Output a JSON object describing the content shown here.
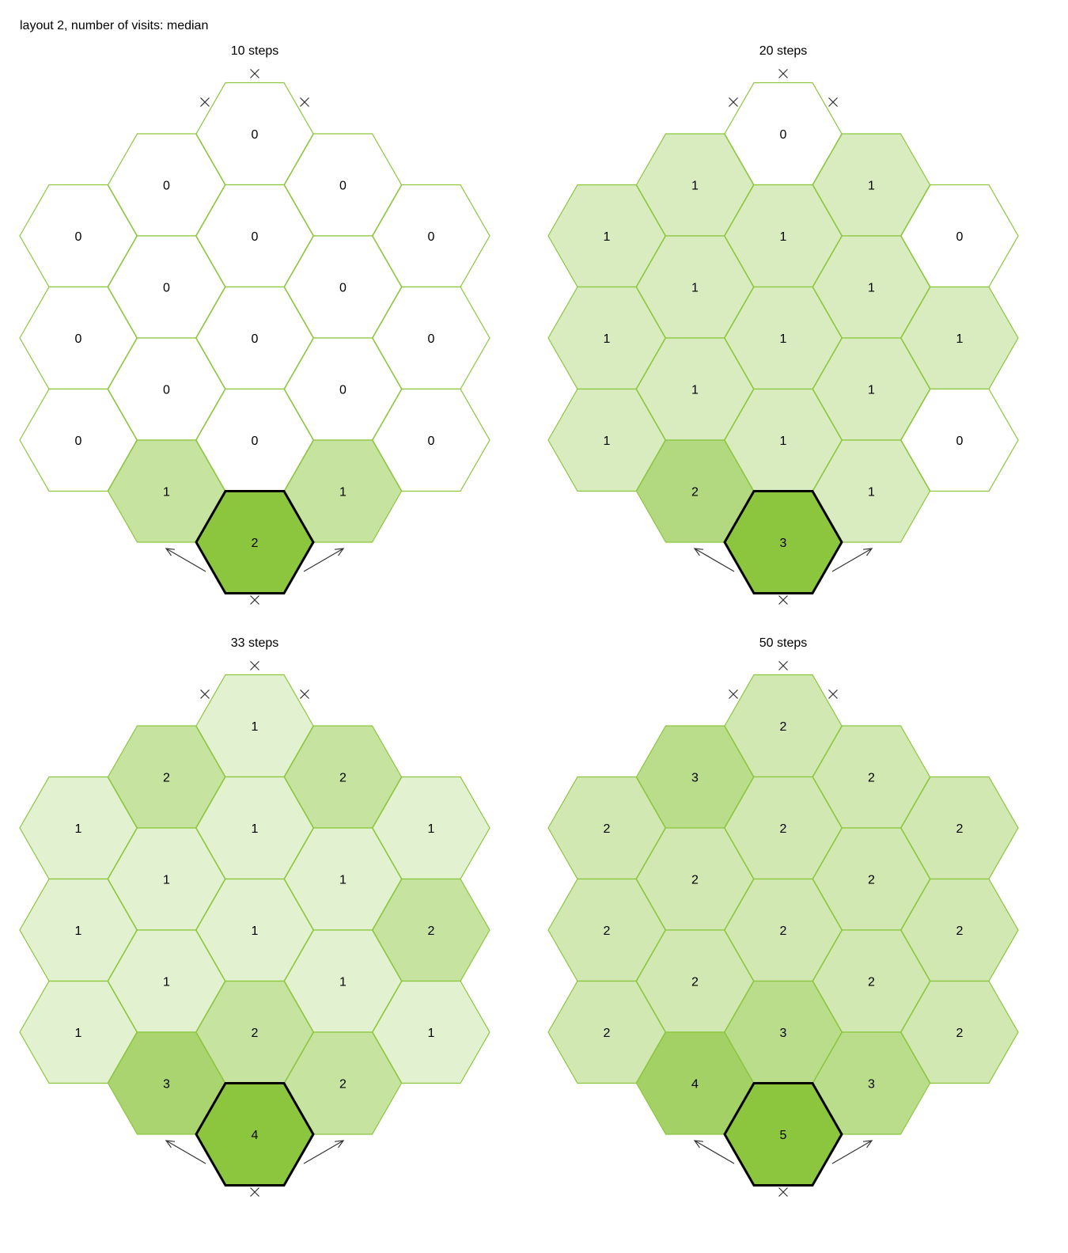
{
  "title": "layout 2, number of visits: median",
  "colors": {
    "edge": "#8cc63f",
    "max": "#8cc63f",
    "zero": "#ffffff",
    "marker": "#333333",
    "highlight_border": "#000000"
  },
  "panels": [
    {
      "title": "10 steps",
      "max": 2,
      "cells": [
        [
          0
        ],
        [
          0,
          0
        ],
        [
          0,
          0,
          0
        ],
        [
          0,
          0
        ],
        [
          0,
          0,
          0
        ],
        [
          0,
          0
        ],
        [
          0,
          0,
          0
        ],
        [
          1,
          1
        ],
        [
          2
        ]
      ]
    },
    {
      "title": "20 steps",
      "max": 3,
      "cells": [
        [
          0
        ],
        [
          1,
          1
        ],
        [
          1,
          1,
          0
        ],
        [
          1,
          1
        ],
        [
          1,
          1,
          1
        ],
        [
          1,
          1
        ],
        [
          1,
          1,
          0
        ],
        [
          2,
          1
        ],
        [
          3
        ]
      ]
    },
    {
      "title": "33 steps",
      "max": 4,
      "cells": [
        [
          1
        ],
        [
          2,
          2
        ],
        [
          1,
          1,
          1
        ],
        [
          1,
          1
        ],
        [
          1,
          1,
          2
        ],
        [
          1,
          1
        ],
        [
          1,
          2,
          1
        ],
        [
          3,
          2
        ],
        [
          4
        ]
      ]
    },
    {
      "title": "50 steps",
      "max": 5,
      "cells": [
        [
          2
        ],
        [
          3,
          2
        ],
        [
          2,
          2,
          2
        ],
        [
          2,
          2
        ],
        [
          2,
          2,
          2
        ],
        [
          2,
          2
        ],
        [
          2,
          3,
          2
        ],
        [
          4,
          3
        ],
        [
          5
        ]
      ]
    }
  ]
}
